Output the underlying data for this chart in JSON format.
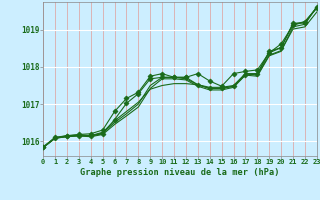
{
  "title": "Graphe pression niveau de la mer (hPa)",
  "background_color": "#cceeff",
  "grid_color": "#aacccc",
  "line_color": "#1a6b1a",
  "ylim": [
    1015.6,
    1019.75
  ],
  "xlim": [
    0,
    23
  ],
  "yticks": [
    1016,
    1017,
    1018,
    1019
  ],
  "xticks": [
    0,
    1,
    2,
    3,
    4,
    5,
    6,
    7,
    8,
    9,
    10,
    11,
    12,
    13,
    14,
    15,
    16,
    17,
    18,
    19,
    20,
    21,
    22,
    23
  ],
  "series_no_marker": [
    [
      1015.83,
      1016.08,
      1016.12,
      1016.16,
      1016.14,
      1016.22,
      1016.5,
      1016.74,
      1017.0,
      1017.5,
      1017.72,
      1017.72,
      1017.68,
      1017.52,
      1017.42,
      1017.42,
      1017.48,
      1017.82,
      1017.78,
      1018.32,
      1018.44,
      1019.02,
      1019.08,
      1019.48
    ]
  ],
  "series_straight": [
    [
      1015.83,
      1016.1,
      1016.14,
      1016.17,
      1016.15,
      1016.24,
      1016.55,
      1016.8,
      1017.05,
      1017.4,
      1017.5,
      1017.55,
      1017.55,
      1017.52,
      1017.45,
      1017.45,
      1017.5,
      1017.82,
      1017.82,
      1018.38,
      1018.52,
      1019.15,
      1019.22,
      1019.6
    ]
  ],
  "series_with_marker": [
    [
      1015.85,
      1016.1,
      1016.15,
      1016.18,
      1016.2,
      1016.3,
      1016.8,
      1017.15,
      1017.32,
      1017.75,
      1017.82,
      1017.72,
      1017.72,
      1017.82,
      1017.62,
      1017.48,
      1017.82,
      1017.88,
      1017.92,
      1018.38,
      1018.62,
      1019.12,
      1019.22,
      1019.58
    ],
    [
      1015.83,
      1016.08,
      1016.14,
      1016.14,
      1016.14,
      1016.2,
      1016.58,
      1017.02,
      1017.28,
      1017.68,
      1017.72,
      1017.72,
      1017.72,
      1017.52,
      1017.42,
      1017.42,
      1017.48,
      1017.78,
      1017.82,
      1018.42,
      1018.52,
      1019.18,
      1019.18,
      1019.62
    ]
  ],
  "series_top": [
    [
      1015.83,
      1016.08,
      1016.12,
      1016.14,
      1016.12,
      1016.18,
      1016.45,
      1016.68,
      1016.92,
      1017.42,
      1017.68,
      1017.68,
      1017.65,
      1017.48,
      1017.38,
      1017.38,
      1017.45,
      1017.78,
      1017.75,
      1018.3,
      1018.42,
      1019.08,
      1019.15,
      1019.62
    ]
  ]
}
